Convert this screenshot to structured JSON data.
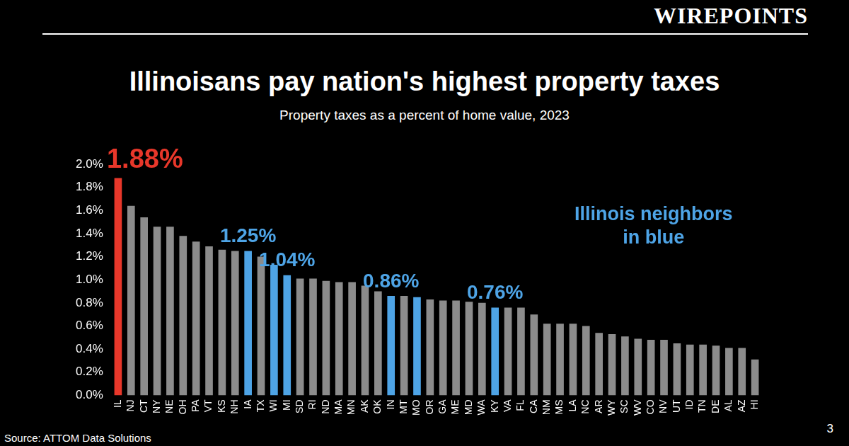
{
  "header": {
    "logo": "WIREPOINTS"
  },
  "chart_data": {
    "type": "bar",
    "title": "Illinoisans pay nation's highest property taxes",
    "subtitle": "Property taxes as a percent of home value, 2023",
    "categories": [
      "IL",
      "NJ",
      "CT",
      "NY",
      "NE",
      "OH",
      "PA",
      "VT",
      "KS",
      "NH",
      "IA",
      "TX",
      "WI",
      "MI",
      "SD",
      "RI",
      "ND",
      "MA",
      "MN",
      "AK",
      "OK",
      "IN",
      "MT",
      "MO",
      "OR",
      "GA",
      "ME",
      "MD",
      "WA",
      "KY",
      "VA",
      "FL",
      "CA",
      "NM",
      "MS",
      "LA",
      "NC",
      "AR",
      "WY",
      "SC",
      "WV",
      "CO",
      "NV",
      "UT",
      "ID",
      "TN",
      "DE",
      "AL",
      "AZ",
      "HI"
    ],
    "values": [
      1.88,
      1.64,
      1.54,
      1.46,
      1.46,
      1.38,
      1.33,
      1.29,
      1.26,
      1.25,
      1.25,
      1.2,
      1.13,
      1.04,
      1.01,
      1.01,
      0.99,
      0.98,
      0.98,
      0.95,
      0.9,
      0.86,
      0.86,
      0.85,
      0.83,
      0.82,
      0.82,
      0.81,
      0.8,
      0.76,
      0.76,
      0.76,
      0.7,
      0.62,
      0.62,
      0.62,
      0.6,
      0.54,
      0.53,
      0.51,
      0.49,
      0.48,
      0.48,
      0.45,
      0.44,
      0.44,
      0.43,
      0.41,
      0.41,
      0.31
    ],
    "colors": [
      "#e8372a",
      "#8c8c8c",
      "#8c8c8c",
      "#8c8c8c",
      "#8c8c8c",
      "#8c8c8c",
      "#8c8c8c",
      "#8c8c8c",
      "#8c8c8c",
      "#8c8c8c",
      "#4ea4e6",
      "#8c8c8c",
      "#4ea4e6",
      "#4ea4e6",
      "#8c8c8c",
      "#8c8c8c",
      "#8c8c8c",
      "#8c8c8c",
      "#8c8c8c",
      "#8c8c8c",
      "#8c8c8c",
      "#4ea4e6",
      "#8c8c8c",
      "#4ea4e6",
      "#8c8c8c",
      "#8c8c8c",
      "#8c8c8c",
      "#8c8c8c",
      "#8c8c8c",
      "#4ea4e6",
      "#8c8c8c",
      "#8c8c8c",
      "#8c8c8c",
      "#8c8c8c",
      "#8c8c8c",
      "#8c8c8c",
      "#8c8c8c",
      "#8c8c8c",
      "#8c8c8c",
      "#8c8c8c",
      "#8c8c8c",
      "#8c8c8c",
      "#8c8c8c",
      "#8c8c8c",
      "#8c8c8c",
      "#8c8c8c",
      "#8c8c8c",
      "#8c8c8c",
      "#8c8c8c",
      "#8c8c8c"
    ],
    "ylim": [
      0,
      2.0
    ],
    "yticks": [
      {
        "value": 0,
        "label": "0.0%"
      },
      {
        "value": 0.2,
        "label": "0.2%"
      },
      {
        "value": 0.4,
        "label": "0.4%"
      },
      {
        "value": 0.6,
        "label": "0.6%"
      },
      {
        "value": 0.8,
        "label": "0.8%"
      },
      {
        "value": 1.0,
        "label": "1.0%"
      },
      {
        "value": 1.2,
        "label": "1.2%"
      },
      {
        "value": 1.4,
        "label": "1.4%"
      },
      {
        "value": 1.6,
        "label": "1.6%"
      },
      {
        "value": 1.8,
        "label": "1.8%"
      },
      {
        "value": 2.0,
        "label": "2.0%"
      }
    ],
    "grid": false,
    "annotations": [
      {
        "category": "IL",
        "text": "1.88%",
        "color": "#e8372a"
      },
      {
        "category": "IA",
        "text": "1.25%",
        "color": "#4ea4e6"
      },
      {
        "category": "MI",
        "text": "1.04%",
        "color": "#4ea4e6"
      },
      {
        "category": "IN",
        "text": "0.86%",
        "color": "#4ea4e6"
      },
      {
        "category": "KY",
        "text": "0.76%",
        "color": "#4ea4e6"
      }
    ],
    "note": {
      "lines": [
        "Illinois neighbors",
        "in blue"
      ],
      "color": "#4ea4e6"
    }
  },
  "footer": {
    "source": "Source: ATTOM Data Solutions",
    "page": "3"
  }
}
